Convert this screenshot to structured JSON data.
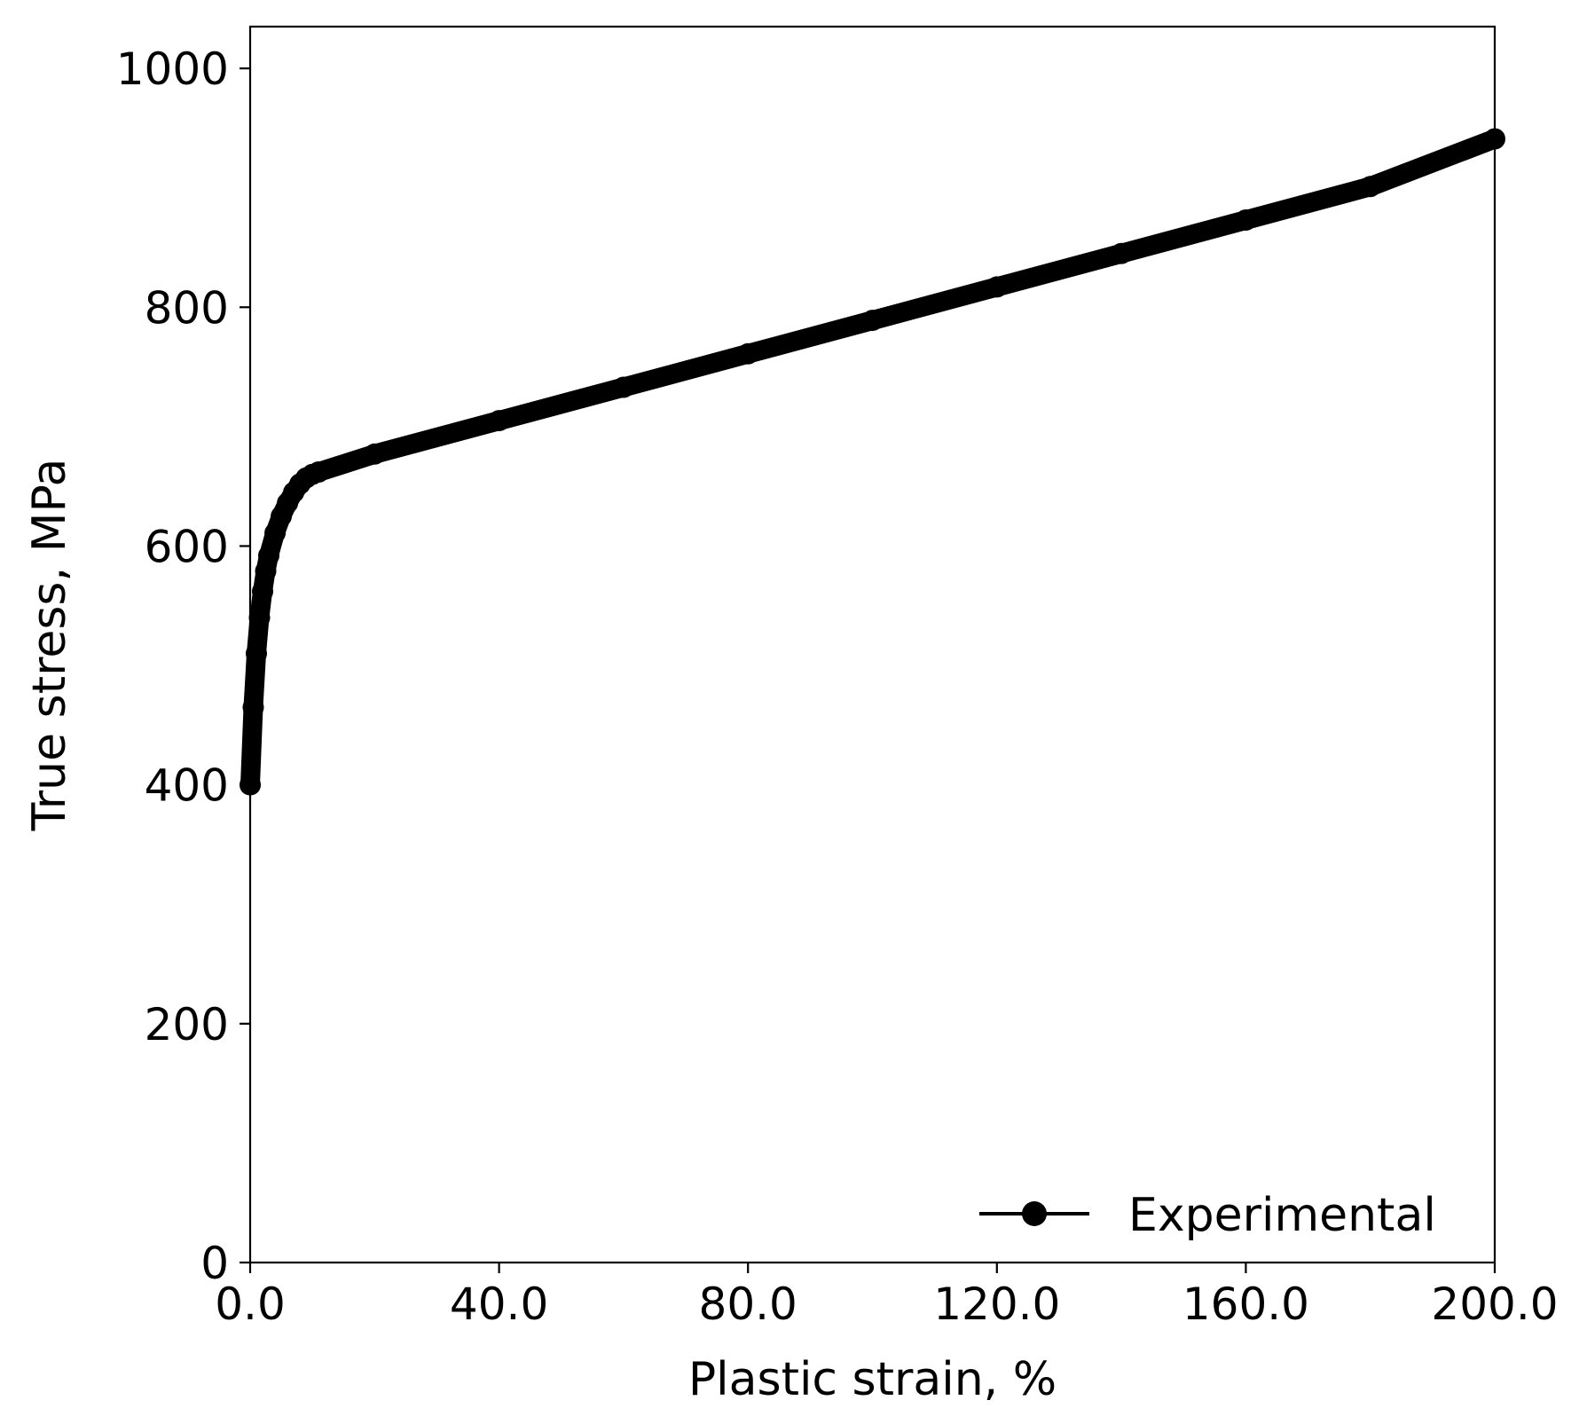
{
  "chart_data": {
    "type": "line",
    "title": "",
    "xlabel": "Plastic strain, %",
    "ylabel": "True stress, MPa",
    "xlim": [
      0,
      200
    ],
    "ylim": [
      0,
      1035
    ],
    "x_ticks": [
      "0.0",
      "40.0",
      "80.0",
      "120.0",
      "160.0",
      "200.0"
    ],
    "y_ticks": [
      "0",
      "200",
      "400",
      "600",
      "800",
      "1000"
    ],
    "grid": false,
    "legend_position": "lower-right",
    "series": [
      {
        "name": "Experimental",
        "color": "#000000",
        "marker": "circle",
        "x": [
          0,
          0.5,
          1,
          1.5,
          2,
          2.5,
          3,
          4,
          5,
          6,
          7,
          8,
          9,
          10,
          11,
          20,
          40,
          60,
          80,
          100,
          120,
          140,
          160,
          180,
          200
        ],
        "y": [
          400,
          465,
          510,
          540,
          562,
          579,
          592,
          611,
          625,
          636,
          645,
          652,
          657,
          660,
          662,
          677,
          705,
          733,
          761,
          789,
          817,
          845,
          873,
          901,
          941
        ]
      }
    ]
  }
}
